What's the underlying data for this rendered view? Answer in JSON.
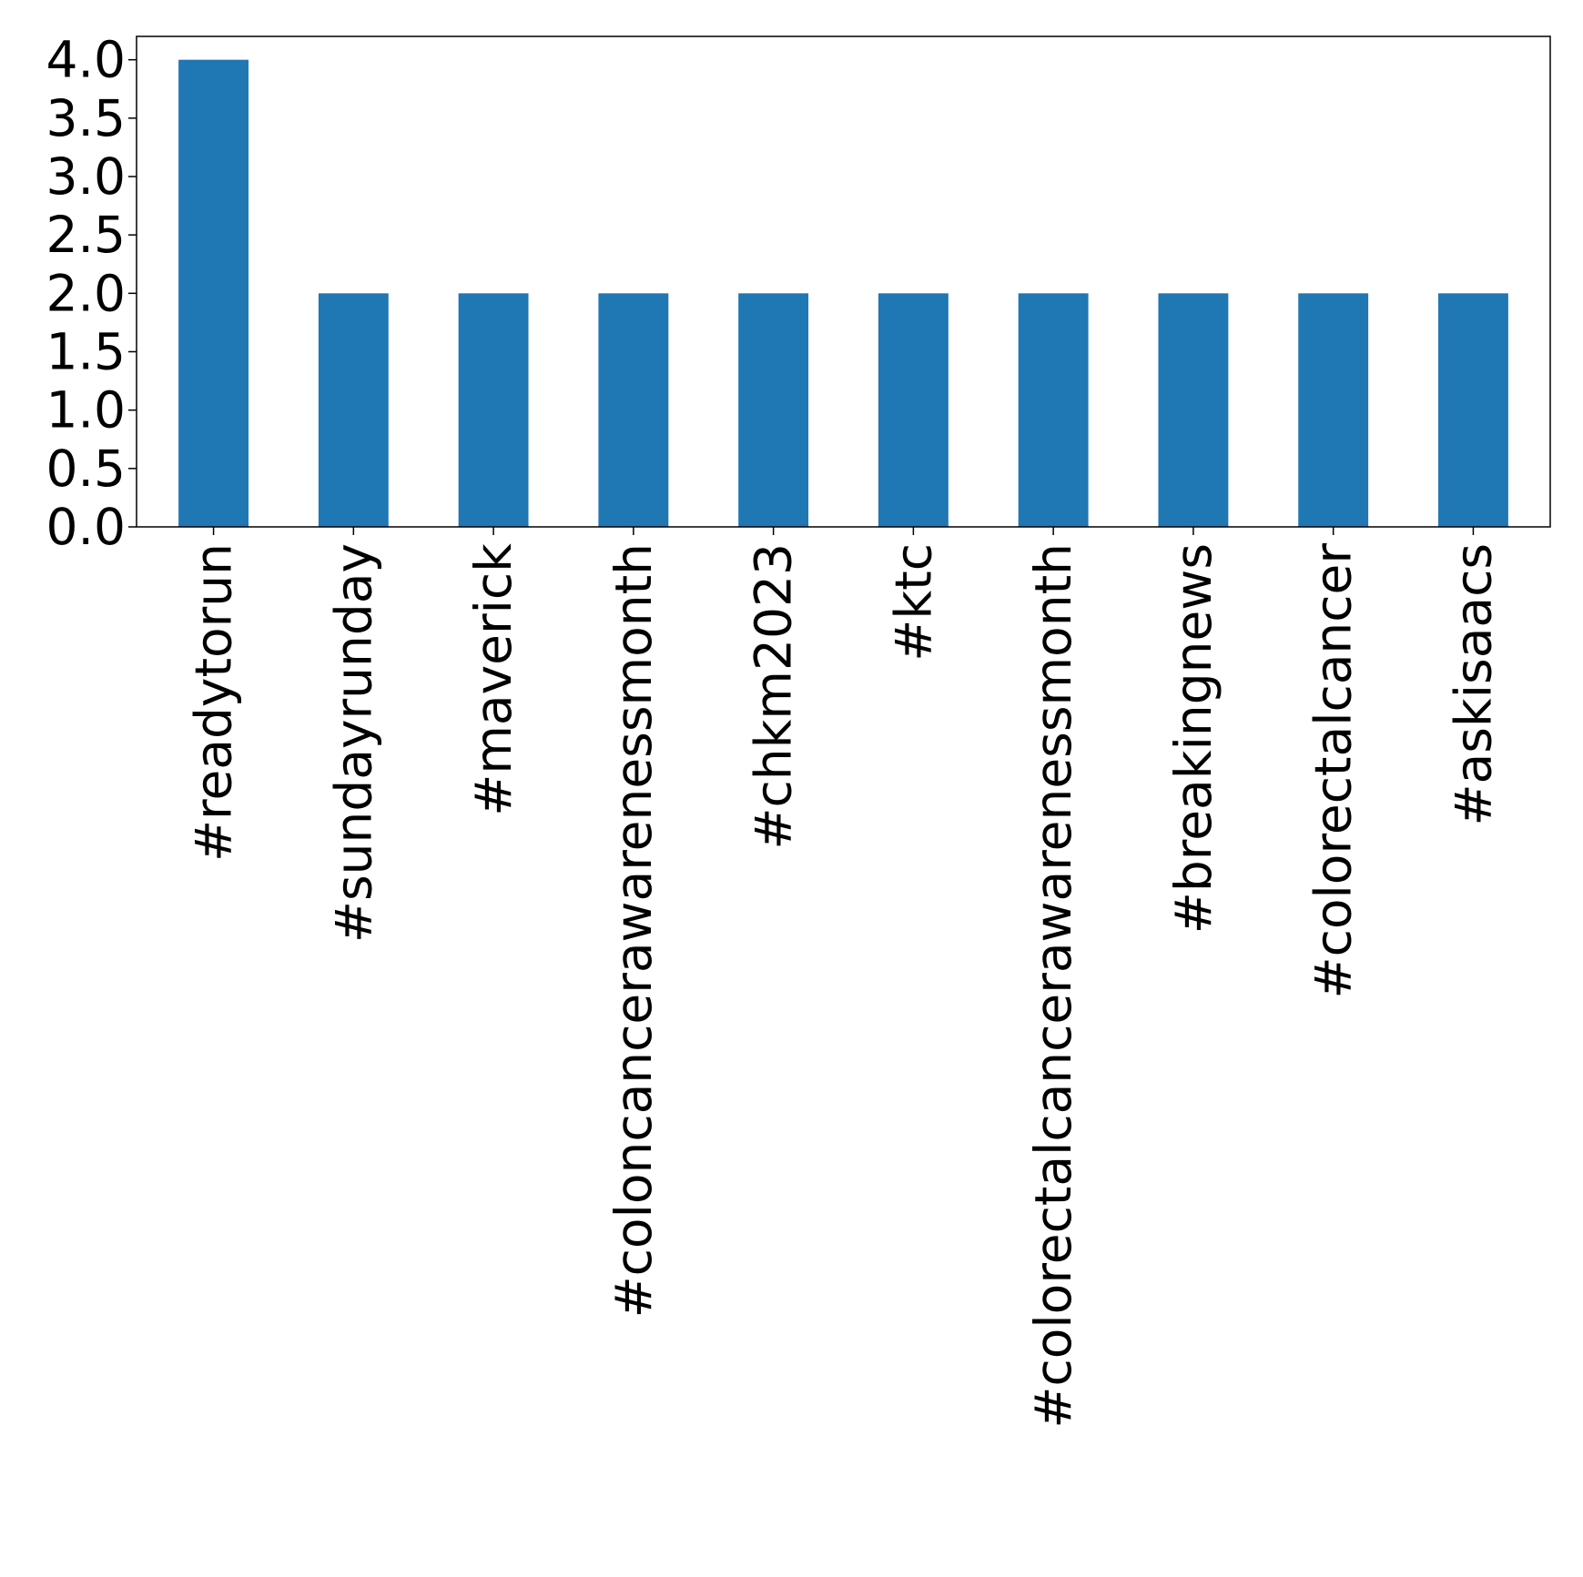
{
  "chart_data": {
    "type": "bar",
    "title": "",
    "xlabel": "",
    "ylabel": "",
    "categories": [
      "#readytorun",
      "#sundayrunday",
      "#maverick",
      "#coloncancerawarenessmonth",
      "#chkm2023",
      "#ktc",
      "#colorectalcancerawarenessmonth",
      "#breakingnews",
      "#colorectalcancer",
      "#askisaacs"
    ],
    "values": [
      4,
      2,
      2,
      2,
      2,
      2,
      2,
      2,
      2,
      2
    ],
    "ylim": [
      0,
      4.2
    ],
    "yticks": [
      "0.0",
      "0.5",
      "1.0",
      "1.5",
      "2.0",
      "2.5",
      "3.0",
      "3.5",
      "4.0"
    ],
    "grid": false,
    "legend": "none",
    "bar_color": "#1f77b4"
  }
}
